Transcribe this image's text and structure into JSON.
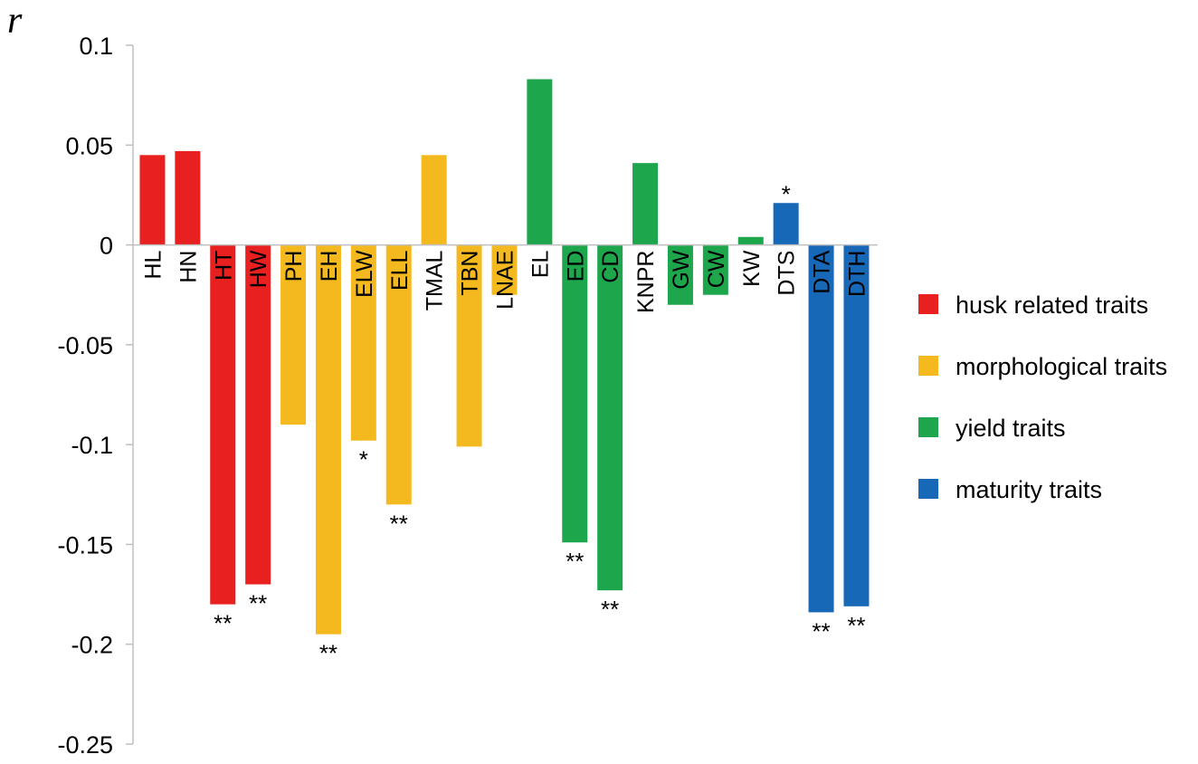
{
  "chart_data": {
    "type": "bar",
    "ylabel": "r",
    "ylim": [
      -0.25,
      0.1
    ],
    "yticks": [
      "0.1",
      "0.05",
      "0",
      "-0.05",
      "-0.1",
      "-0.15",
      "-0.2",
      "-0.25"
    ],
    "grid": false,
    "legend_position": "right",
    "categories": [
      "HL",
      "HN",
      "HT",
      "HW",
      "PH",
      "EH",
      "ELW",
      "ELL",
      "TMAL",
      "TBN",
      "LNAE",
      "EL",
      "ED",
      "CD",
      "KNPR",
      "GW",
      "CW",
      "KW",
      "DTS",
      "DTA",
      "DTH"
    ],
    "values": [
      0.045,
      0.047,
      -0.18,
      -0.17,
      -0.09,
      -0.195,
      -0.098,
      -0.13,
      0.045,
      -0.101,
      -0.025,
      0.083,
      -0.149,
      -0.173,
      0.041,
      -0.03,
      -0.025,
      0.004,
      0.021,
      -0.184,
      -0.181
    ],
    "groups": [
      "husk",
      "husk",
      "husk",
      "husk",
      "morph",
      "morph",
      "morph",
      "morph",
      "morph",
      "morph",
      "morph",
      "yield",
      "yield",
      "yield",
      "yield",
      "yield",
      "yield",
      "yield",
      "maturity",
      "maturity",
      "maturity"
    ],
    "significance": [
      "",
      "",
      "**",
      "**",
      "",
      "**",
      "*",
      "**",
      "",
      "",
      "",
      "",
      "**",
      "**",
      "",
      "",
      "",
      "",
      "*",
      "**",
      "**"
    ],
    "legend": [
      {
        "key": "husk",
        "label": "husk related traits",
        "color": "#e8201f"
      },
      {
        "key": "morph",
        "label": "morphological traits",
        "color": "#f5b920"
      },
      {
        "key": "yield",
        "label": "yield traits",
        "color": "#1ea64d"
      },
      {
        "key": "maturity",
        "label": "maturity traits",
        "color": "#1769b7"
      }
    ]
  }
}
